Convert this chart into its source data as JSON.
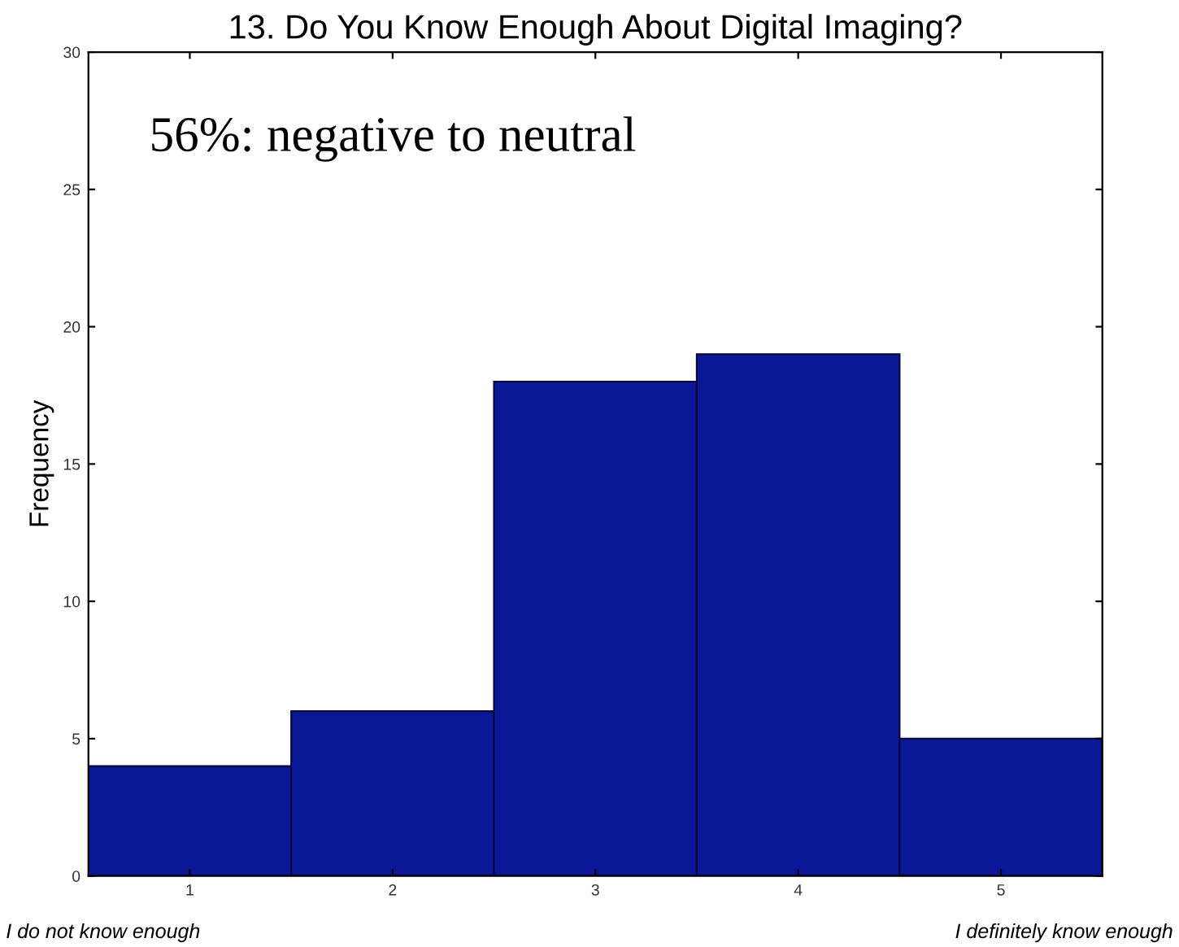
{
  "chart_data": {
    "type": "bar",
    "title": "13. Do You Know Enough About Digital Imaging?",
    "ylabel": "Frequency",
    "categories": [
      "1",
      "2",
      "3",
      "4",
      "5"
    ],
    "values": [
      4,
      6,
      18,
      19,
      5
    ],
    "color": "#0a1896",
    "ylim": [
      0,
      30
    ],
    "yticks": [
      0,
      5,
      10,
      15,
      20,
      25,
      30
    ],
    "grid": false,
    "legend": false,
    "annotations": [
      "56%: negative to neutral",
      "I do not know enough",
      "I definitely know enough"
    ]
  }
}
